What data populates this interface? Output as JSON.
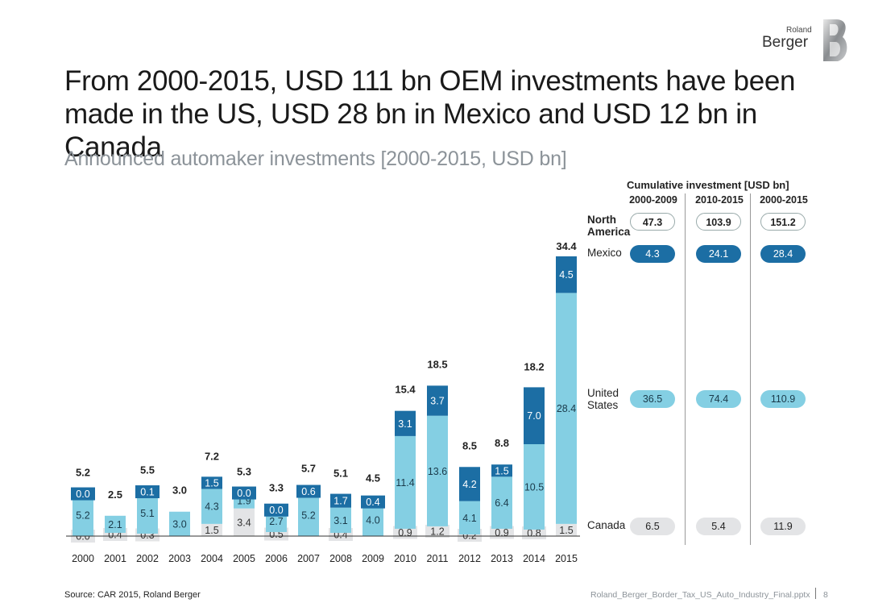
{
  "header": {
    "title_line1": "From 2000-2015, USD 111 bn OEM investments have been",
    "title_line2": "made in the US, USD 28 bn in Mexico and USD 12 bn in Canada",
    "subtitle": "Announced automaker investments [2000-2015, USD bn]"
  },
  "logo": {
    "small": "Roland",
    "big": "Berger"
  },
  "colors": {
    "canada": "#e3e4e6",
    "us": "#84cfe3",
    "mexico": "#1c6ea4"
  },
  "chart_data": {
    "type": "bar",
    "stacked": true,
    "title": "Announced automaker investments [2000-2015, USD bn]",
    "categories": [
      "2000",
      "2001",
      "2002",
      "2003",
      "2004",
      "2005",
      "2006",
      "2007",
      "2008",
      "2009",
      "2010",
      "2011",
      "2012",
      "2013",
      "2014",
      "2015"
    ],
    "series": [
      {
        "name": "Canada",
        "values": [
          0.0,
          0.4,
          0.3,
          null,
          1.5,
          3.4,
          0.5,
          null,
          0.4,
          null,
          0.9,
          1.2,
          0.2,
          0.9,
          0.8,
          1.5
        ]
      },
      {
        "name": "United States",
        "values": [
          5.2,
          2.1,
          5.1,
          3.0,
          4.3,
          1.9,
          2.7,
          5.2,
          3.1,
          4.0,
          11.4,
          13.6,
          4.1,
          6.4,
          10.5,
          28.4
        ]
      },
      {
        "name": "Mexico",
        "values": [
          0.0,
          null,
          0.1,
          null,
          1.5,
          0.0,
          0.0,
          0.6,
          1.7,
          0.4,
          3.1,
          3.7,
          4.2,
          1.5,
          7.0,
          4.5
        ]
      }
    ],
    "totals": [
      5.2,
      2.5,
      5.5,
      3.0,
      7.2,
      5.3,
      3.3,
      5.7,
      5.1,
      4.5,
      15.4,
      18.5,
      8.5,
      8.8,
      18.2,
      34.4
    ],
    "ylim": [
      0,
      34.4
    ],
    "xlabel": "",
    "ylabel": ""
  },
  "cumulative": {
    "title": "Cumulative investment [USD bn]",
    "periods": [
      "2000-2009",
      "2010-2015",
      "2000-2015"
    ],
    "north_america": {
      "label_line1": "North",
      "label_line2": "America",
      "values": [
        "47.3",
        "103.9",
        "151.2"
      ]
    },
    "mexico": {
      "label": "Mexico",
      "values": [
        "4.3",
        "24.1",
        "28.4"
      ]
    },
    "united_states": {
      "label_line1": "United",
      "label_line2": "States",
      "values": [
        "36.5",
        "74.4",
        "110.9"
      ]
    },
    "canada": {
      "label": "Canada",
      "values": [
        "6.5",
        "5.4",
        "11.9"
      ]
    }
  },
  "footer": {
    "source": "Source: CAR 2015, Roland Berger",
    "file": "Roland_Berger_Border_Tax_US_Auto_Industry_Final.pptx",
    "page": "8"
  }
}
